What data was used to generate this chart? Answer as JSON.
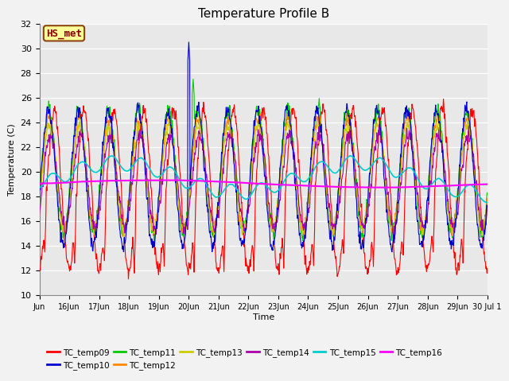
{
  "title": "Temperature Profile B",
  "xlabel": "Time",
  "ylabel": "Temperature (C)",
  "ylim": [
    10,
    32
  ],
  "yticks": [
    10,
    12,
    14,
    16,
    18,
    20,
    22,
    24,
    26,
    28,
    30,
    32
  ],
  "annotation_text": "HS_met",
  "annotation_color": "#8B0000",
  "annotation_bg": "#FFFF99",
  "annotation_border": "#8B4513",
  "series_colors": {
    "TC_temp09": "#FF0000",
    "TC_temp10": "#0000CC",
    "TC_temp11": "#00CC00",
    "TC_temp12": "#FF8800",
    "TC_temp13": "#CCCC00",
    "TC_temp14": "#AA00AA",
    "TC_temp15": "#00CCCC",
    "TC_temp16": "#FF00FF"
  },
  "x_tick_labels": [
    "Jun",
    "16Jun",
    "17Jun",
    "18Jun",
    "19Jun",
    "20Jun",
    "21Jun",
    "22Jun",
    "23Jun",
    "24Jun",
    "25Jun",
    "26Jun",
    "27Jun",
    "28Jun",
    "29Jun",
    "30 Jul 1"
  ],
  "n_points": 1440
}
